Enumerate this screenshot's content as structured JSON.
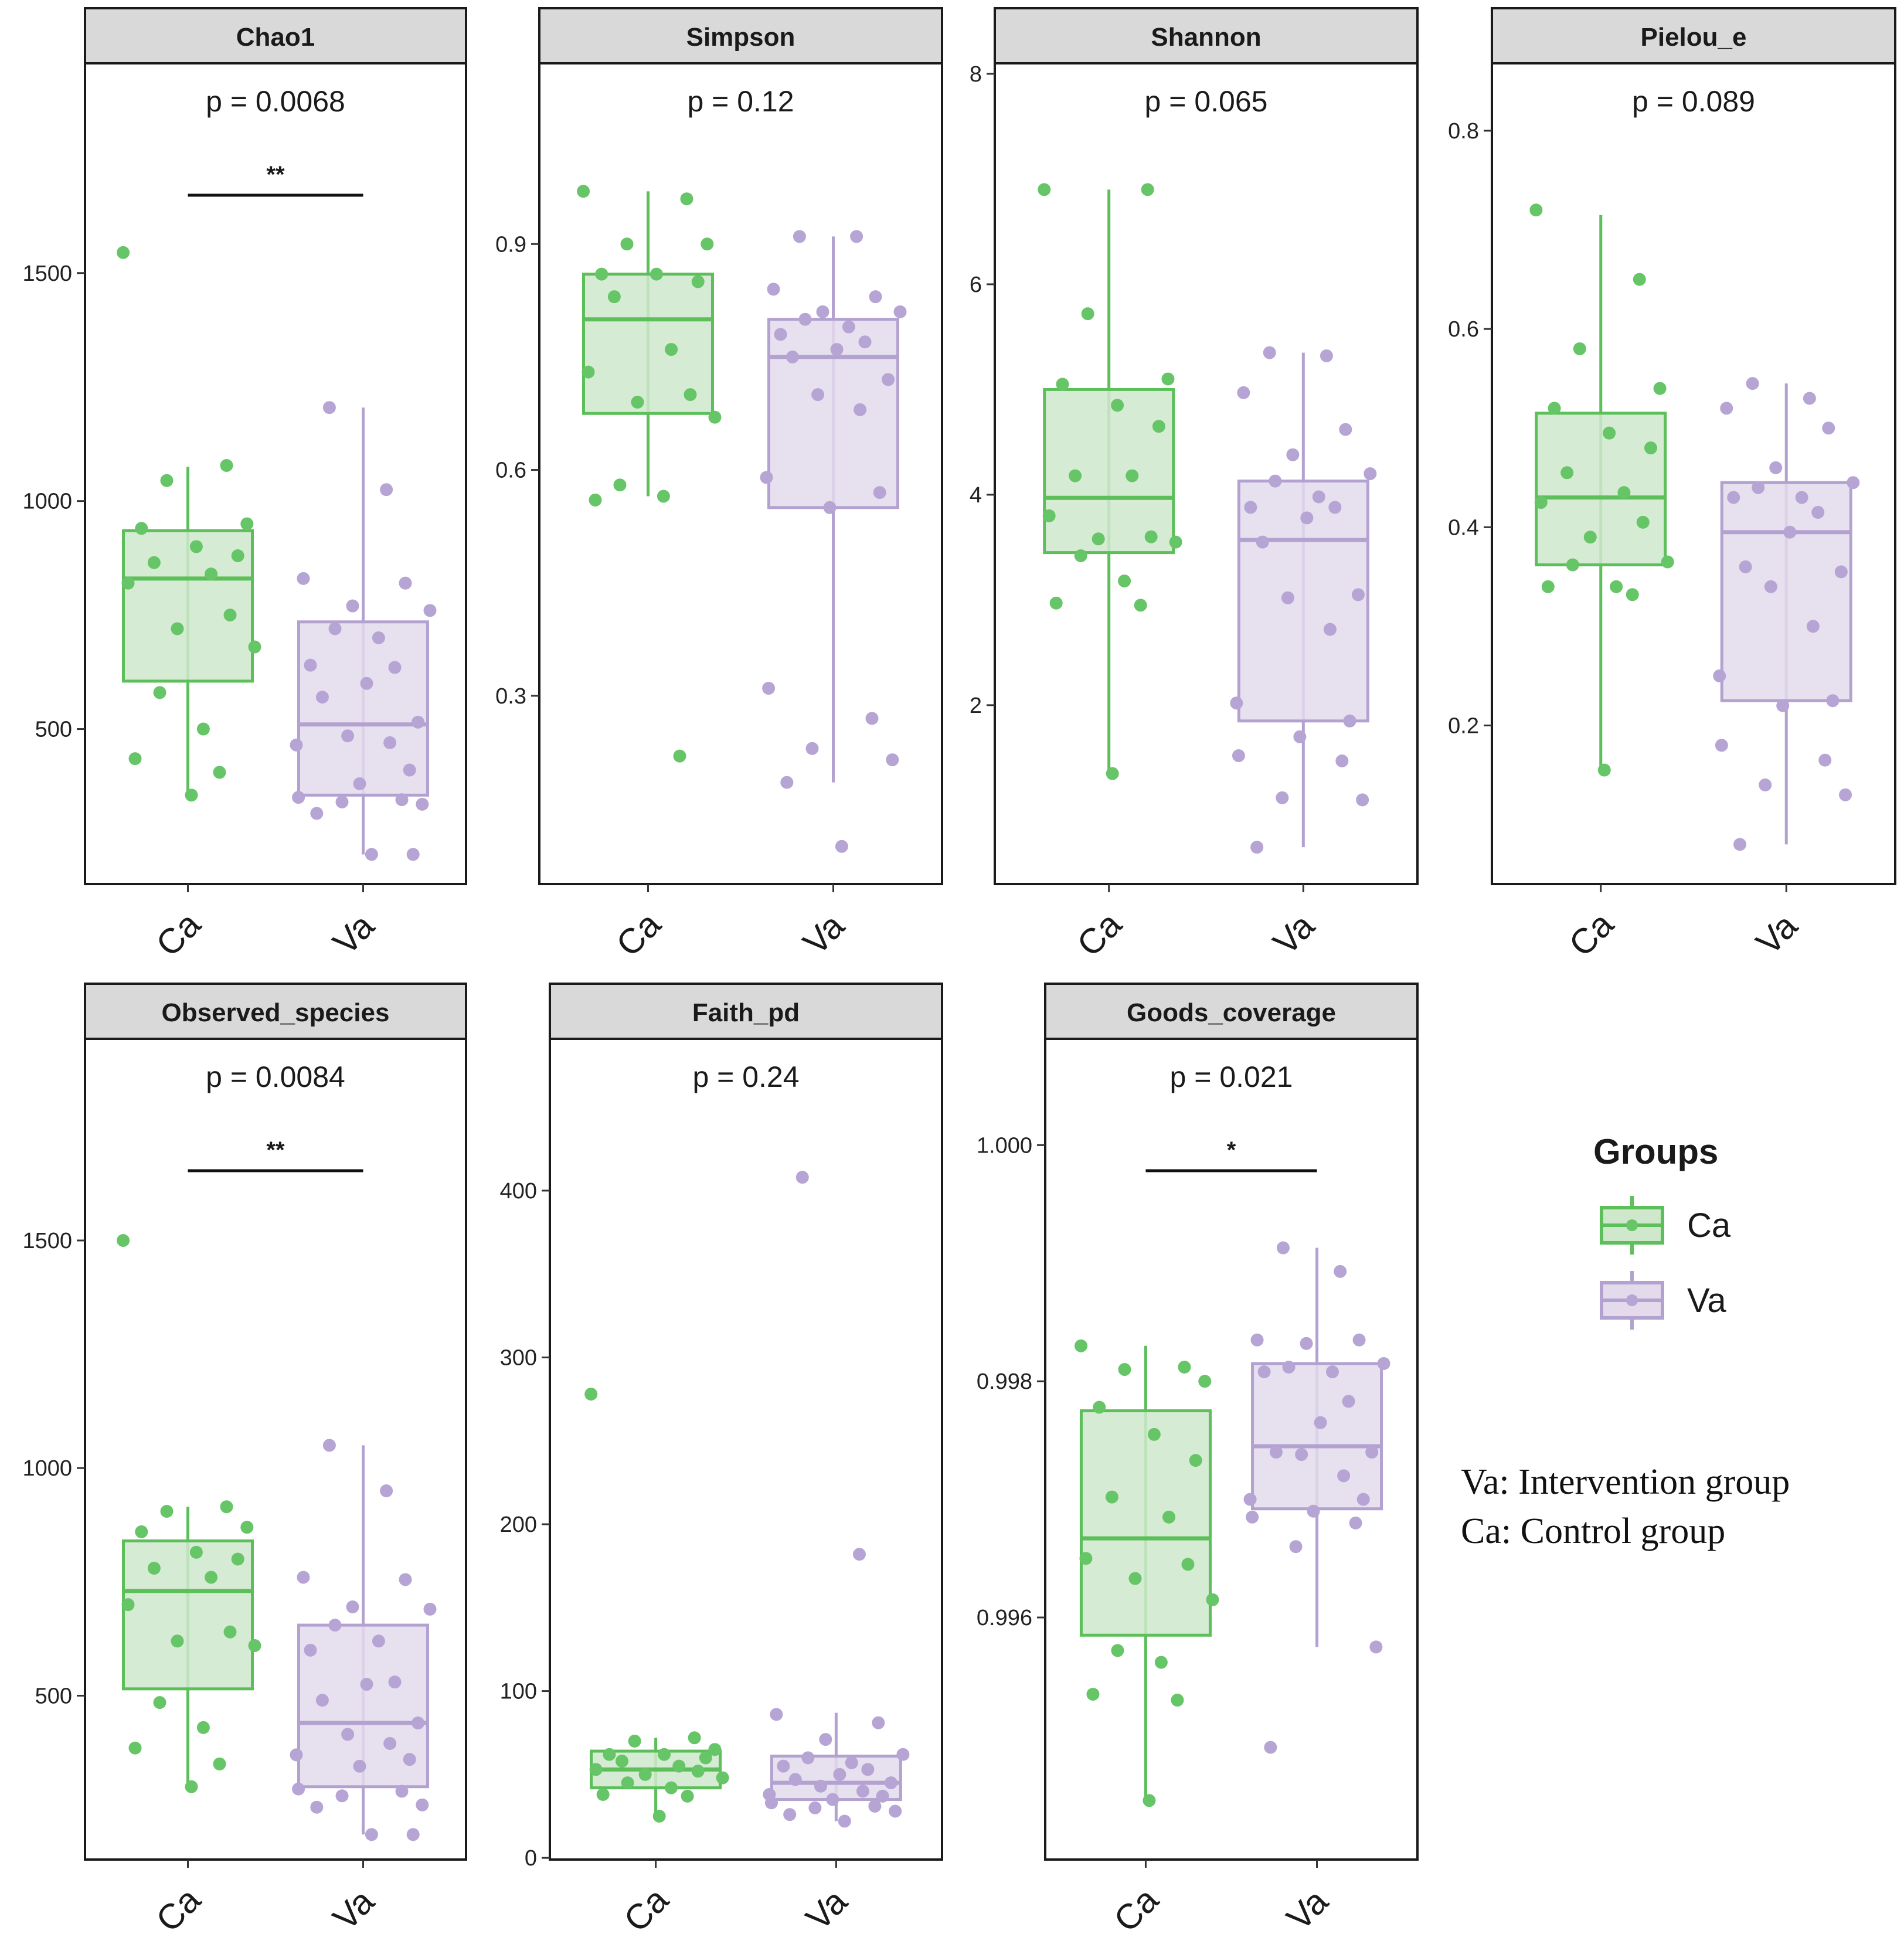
{
  "chart_data": [
    {
      "type": "box",
      "title": "Chao1",
      "p_label": "p = 0.0068",
      "significance": "**",
      "categories": [
        "Ca",
        "Va"
      ],
      "yticks": [
        {
          "value": 500,
          "label": "500"
        },
        {
          "value": 1000,
          "label": "1000"
        },
        {
          "value": 1500,
          "label": "1500"
        }
      ],
      "ylim": [
        160,
        1960
      ],
      "boxes": [
        {
          "group": "Ca",
          "whisker_low": 355,
          "q1": 605,
          "median": 830,
          "q3": 935,
          "whisker_high": 1075
        },
        {
          "group": "Va",
          "whisker_low": 225,
          "q1": 355,
          "median": 510,
          "q3": 735,
          "whisker_high": 1205
        }
      ],
      "points": [
        {
          "group": "Ca",
          "values": [
            1545,
            1078,
            1045,
            950,
            940,
            900,
            880,
            865,
            840,
            820,
            750,
            720,
            680,
            580,
            500,
            435,
            405,
            355
          ]
        },
        {
          "group": "Va",
          "values": [
            1205,
            1025,
            830,
            820,
            770,
            760,
            720,
            700,
            640,
            635,
            600,
            570,
            515,
            485,
            470,
            465,
            410,
            380,
            350,
            345,
            340,
            335,
            315,
            225,
            225
          ]
        }
      ]
    },
    {
      "type": "box",
      "title": "Simpson",
      "p_label": "p = 0.12",
      "significance": "",
      "categories": [
        "Ca",
        "Va"
      ],
      "yticks": [
        {
          "value": 0.3,
          "label": "0.3"
        },
        {
          "value": 0.6,
          "label": "0.6"
        },
        {
          "value": 0.9,
          "label": "0.9"
        }
      ],
      "ylim": [
        0.05,
        1.14
      ],
      "boxes": [
        {
          "group": "Ca",
          "whisker_low": 0.565,
          "q1": 0.675,
          "median": 0.8,
          "q3": 0.86,
          "whisker_high": 0.97
        },
        {
          "group": "Va",
          "whisker_low": 0.185,
          "q1": 0.55,
          "median": 0.75,
          "q3": 0.8,
          "whisker_high": 0.91
        }
      ],
      "points": [
        {
          "group": "Ca",
          "values": [
            0.97,
            0.96,
            0.9,
            0.9,
            0.86,
            0.86,
            0.85,
            0.83,
            0.76,
            0.73,
            0.7,
            0.69,
            0.67,
            0.58,
            0.565,
            0.56,
            0.22
          ]
        },
        {
          "group": "Va",
          "values": [
            0.91,
            0.91,
            0.84,
            0.83,
            0.81,
            0.81,
            0.8,
            0.79,
            0.78,
            0.77,
            0.76,
            0.75,
            0.72,
            0.7,
            0.68,
            0.59,
            0.57,
            0.55,
            0.31,
            0.27,
            0.23,
            0.215,
            0.185,
            0.1
          ]
        }
      ]
    },
    {
      "type": "box",
      "title": "Shannon",
      "p_label": "p = 0.065",
      "significance": "",
      "categories": [
        "Ca",
        "Va"
      ],
      "yticks": [
        {
          "value": 2,
          "label": "2"
        },
        {
          "value": 4,
          "label": "4"
        },
        {
          "value": 6,
          "label": "6"
        },
        {
          "value": 8,
          "label": "8"
        }
      ],
      "ylim": [
        0.3,
        8.1
      ],
      "boxes": [
        {
          "group": "Ca",
          "whisker_low": 1.35,
          "q1": 3.45,
          "median": 3.97,
          "q3": 5.0,
          "whisker_high": 6.9
        },
        {
          "group": "Va",
          "whisker_low": 0.65,
          "q1": 1.85,
          "median": 3.57,
          "q3": 4.13,
          "whisker_high": 5.35
        }
      ],
      "points": [
        {
          "group": "Ca",
          "values": [
            6.9,
            6.9,
            5.72,
            5.1,
            5.05,
            4.85,
            4.65,
            4.18,
            4.18,
            3.8,
            3.6,
            3.58,
            3.55,
            3.42,
            3.18,
            2.97,
            2.95,
            1.35
          ]
        },
        {
          "group": "Va",
          "values": [
            5.35,
            5.32,
            4.97,
            4.62,
            4.38,
            4.2,
            4.13,
            3.98,
            3.88,
            3.88,
            3.78,
            3.55,
            3.05,
            3.02,
            2.72,
            2.02,
            1.85,
            1.7,
            1.52,
            1.47,
            1.12,
            1.1,
            0.65
          ]
        }
      ]
    },
    {
      "type": "box",
      "title": "Pielou_e",
      "p_label": "p = 0.089",
      "significance": "",
      "categories": [
        "Ca",
        "Va"
      ],
      "yticks": [
        {
          "value": 0.2,
          "label": "0.2"
        },
        {
          "value": 0.4,
          "label": "0.4"
        },
        {
          "value": 0.6,
          "label": "0.6"
        },
        {
          "value": 0.8,
          "label": "0.8"
        }
      ],
      "ylim": [
        0.04,
        0.868
      ],
      "boxes": [
        {
          "group": "Ca",
          "whisker_low": 0.155,
          "q1": 0.362,
          "median": 0.43,
          "q3": 0.515,
          "whisker_high": 0.715
        },
        {
          "group": "Va",
          "whisker_low": 0.08,
          "q1": 0.225,
          "median": 0.395,
          "q3": 0.445,
          "whisker_high": 0.545
        }
      ],
      "points": [
        {
          "group": "Ca",
          "values": [
            0.72,
            0.65,
            0.58,
            0.54,
            0.52,
            0.495,
            0.48,
            0.455,
            0.435,
            0.425,
            0.405,
            0.39,
            0.365,
            0.362,
            0.34,
            0.34,
            0.332,
            0.155
          ]
        },
        {
          "group": "Va",
          "values": [
            0.545,
            0.53,
            0.52,
            0.5,
            0.46,
            0.445,
            0.44,
            0.43,
            0.43,
            0.415,
            0.395,
            0.36,
            0.355,
            0.34,
            0.3,
            0.25,
            0.225,
            0.22,
            0.18,
            0.165,
            0.14,
            0.13,
            0.08
          ]
        }
      ]
    },
    {
      "type": "box",
      "title": "Observed_species",
      "p_label": "p = 0.0084",
      "significance": "**",
      "categories": [
        "Ca",
        "Va"
      ],
      "yticks": [
        {
          "value": 500,
          "label": "500"
        },
        {
          "value": 1000,
          "label": "1000"
        },
        {
          "value": 1500,
          "label": "1500"
        }
      ],
      "ylim": [
        140,
        1943
      ],
      "boxes": [
        {
          "group": "Ca",
          "whisker_low": 300,
          "q1": 515,
          "median": 730,
          "q3": 840,
          "whisker_high": 915
        },
        {
          "group": "Va",
          "whisker_low": 195,
          "q1": 300,
          "median": 440,
          "q3": 655,
          "whisker_high": 1050
        }
      ],
      "points": [
        {
          "group": "Ca",
          "values": [
            1500,
            915,
            905,
            870,
            860,
            815,
            800,
            780,
            760,
            700,
            640,
            620,
            610,
            485,
            430,
            385,
            350,
            300
          ]
        },
        {
          "group": "Va",
          "values": [
            1050,
            950,
            760,
            755,
            695,
            690,
            655,
            620,
            600,
            530,
            525,
            490,
            440,
            415,
            395,
            370,
            360,
            345,
            295,
            290,
            280,
            260,
            255,
            195,
            195
          ]
        }
      ]
    },
    {
      "type": "box",
      "title": "Faith_pd",
      "p_label": "p = 0.24",
      "significance": "",
      "categories": [
        "Ca",
        "Va"
      ],
      "yticks": [
        {
          "value": 0,
          "label": "0"
        },
        {
          "value": 100,
          "label": "100"
        },
        {
          "value": 200,
          "label": "200"
        },
        {
          "value": 300,
          "label": "300"
        },
        {
          "value": 400,
          "label": "400"
        }
      ],
      "ylim": [
        -1,
        491
      ],
      "boxes": [
        {
          "group": "Ca",
          "whisker_low": 25,
          "q1": 42,
          "median": 53,
          "q3": 64,
          "whisker_high": 72
        },
        {
          "group": "Va",
          "whisker_low": 22,
          "q1": 35,
          "median": 45,
          "q3": 61,
          "whisker_high": 87
        }
      ],
      "points": [
        {
          "group": "Ca",
          "values": [
            278,
            72,
            70,
            65,
            62,
            62,
            60,
            58,
            55,
            53,
            52,
            50,
            48,
            45,
            42,
            38,
            37,
            25
          ]
        },
        {
          "group": "Va",
          "values": [
            408,
            182,
            86,
            81,
            71,
            62,
            60,
            57,
            55,
            53,
            50,
            47,
            45,
            43,
            40,
            38,
            37,
            35,
            33,
            31,
            30,
            28,
            26,
            22
          ]
        }
      ]
    },
    {
      "type": "box",
      "title": "Goods_coverage",
      "p_label": "p = 0.021",
      "significance": "*",
      "categories": [
        "Ca",
        "Va"
      ],
      "yticks": [
        {
          "value": 0.996,
          "label": "0.996"
        },
        {
          "value": 0.998,
          "label": "0.998"
        },
        {
          "value": 1.0,
          "label": "1.000"
        }
      ],
      "ylim": [
        0.99395,
        1.0009
      ],
      "boxes": [
        {
          "group": "Ca",
          "whisker_low": 0.99445,
          "q1": 0.99585,
          "median": 0.99667,
          "q3": 0.99775,
          "whisker_high": 0.9983
        },
        {
          "group": "Va",
          "whisker_low": 0.99575,
          "q1": 0.99692,
          "median": 0.99745,
          "q3": 0.99815,
          "whisker_high": 0.99913
        }
      ],
      "points": [
        {
          "group": "Ca",
          "values": [
            0.9983,
            0.99812,
            0.9981,
            0.998,
            0.99778,
            0.99755,
            0.99733,
            0.99702,
            0.99685,
            0.9965,
            0.99645,
            0.99633,
            0.99615,
            0.99572,
            0.99562,
            0.99535,
            0.9953,
            0.99445
          ]
        },
        {
          "group": "Va",
          "values": [
            0.99913,
            0.99893,
            0.99835,
            0.99835,
            0.99832,
            0.99815,
            0.99812,
            0.99808,
            0.99808,
            0.99783,
            0.99765,
            0.9974,
            0.9974,
            0.99738,
            0.9972,
            0.997,
            0.997,
            0.9969,
            0.99685,
            0.9968,
            0.9966,
            0.99575,
            0.9949
          ]
        }
      ]
    }
  ],
  "legend": {
    "title": "Groups",
    "items": [
      {
        "label": "Ca",
        "fill": "#cfe8cc",
        "stroke": "#5cbf5a"
      },
      {
        "label": "Va",
        "fill": "#e3dbec",
        "stroke": "#b3a2d0"
      }
    ]
  },
  "notes": [
    "Va: Intervention group",
    "Ca: Control group"
  ],
  "colors": {
    "ca_point": "#66c566",
    "ca_line": "#5cbf5a",
    "ca_fill": "#cfe8cc",
    "va_point": "#b6a5d4",
    "va_line": "#b3a2d0",
    "va_fill": "#e3dbec",
    "strip_bg": "#d9d9d9",
    "panel_border": "#1a1a1a"
  }
}
